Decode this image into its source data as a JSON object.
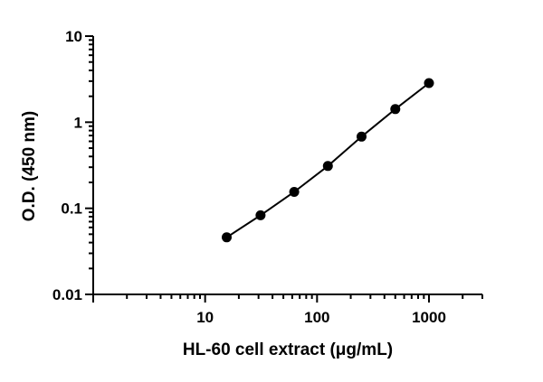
{
  "chart_data": {
    "type": "scatter",
    "title": "",
    "xlabel": "HL-60 cell extract (μg/mL)",
    "ylabel": "O.D. (450 nm)",
    "xscale": "log",
    "yscale": "log",
    "xlim": [
      1,
      3000
    ],
    "ylim": [
      0.01,
      10
    ],
    "xticks": [
      {
        "value": 10,
        "label": "10"
      },
      {
        "value": 100,
        "label": "100"
      },
      {
        "value": 1000,
        "label": "1000"
      }
    ],
    "yticks": [
      {
        "value": 0.01,
        "label": "0.01"
      },
      {
        "value": 0.1,
        "label": "0.1"
      },
      {
        "value": 1,
        "label": "1"
      },
      {
        "value": 10,
        "label": "10"
      }
    ],
    "grid": false,
    "legend": "none",
    "series": [
      {
        "points": [
          {
            "x": 15.6,
            "y": 0.046
          },
          {
            "x": 31.25,
            "y": 0.083
          },
          {
            "x": 62.5,
            "y": 0.155
          },
          {
            "x": 125,
            "y": 0.31
          },
          {
            "x": 250,
            "y": 0.68
          },
          {
            "x": 500,
            "y": 1.42
          },
          {
            "x": 1000,
            "y": 2.85
          }
        ],
        "color": "#000000",
        "line": true,
        "marker": "circle"
      }
    ]
  }
}
